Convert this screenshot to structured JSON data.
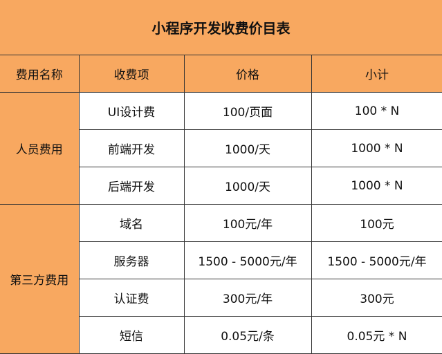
{
  "title": "小程序开发收费价目表",
  "colors": {
    "header_bg": "#F8A860",
    "cell_bg": "#FFFFFF",
    "border": "#333333"
  },
  "headers": [
    "费用名称",
    "收费项",
    "价格",
    "小计"
  ],
  "groups": [
    {
      "name": "人员费用",
      "rows": [
        {
          "item": "UI设计费",
          "price": "100/页面",
          "subtotal": "100 * N"
        },
        {
          "item": "前端开发",
          "price": "1000/天",
          "subtotal": "1000 * N"
        },
        {
          "item": "后端开发",
          "price": "1000/天",
          "subtotal": "1000 * N"
        }
      ]
    },
    {
      "name": "第三方费用",
      "rows": [
        {
          "item": "域名",
          "price": "100元/年",
          "subtotal": "100元"
        },
        {
          "item": "服务器",
          "price": "1500 - 5000元/年",
          "subtotal": "1500 - 5000元/年"
        },
        {
          "item": "认证费",
          "price": "300元/年",
          "subtotal": "300元"
        },
        {
          "item": "短信",
          "price": "0.05元/条",
          "subtotal": "0.05元 * N"
        }
      ]
    }
  ]
}
